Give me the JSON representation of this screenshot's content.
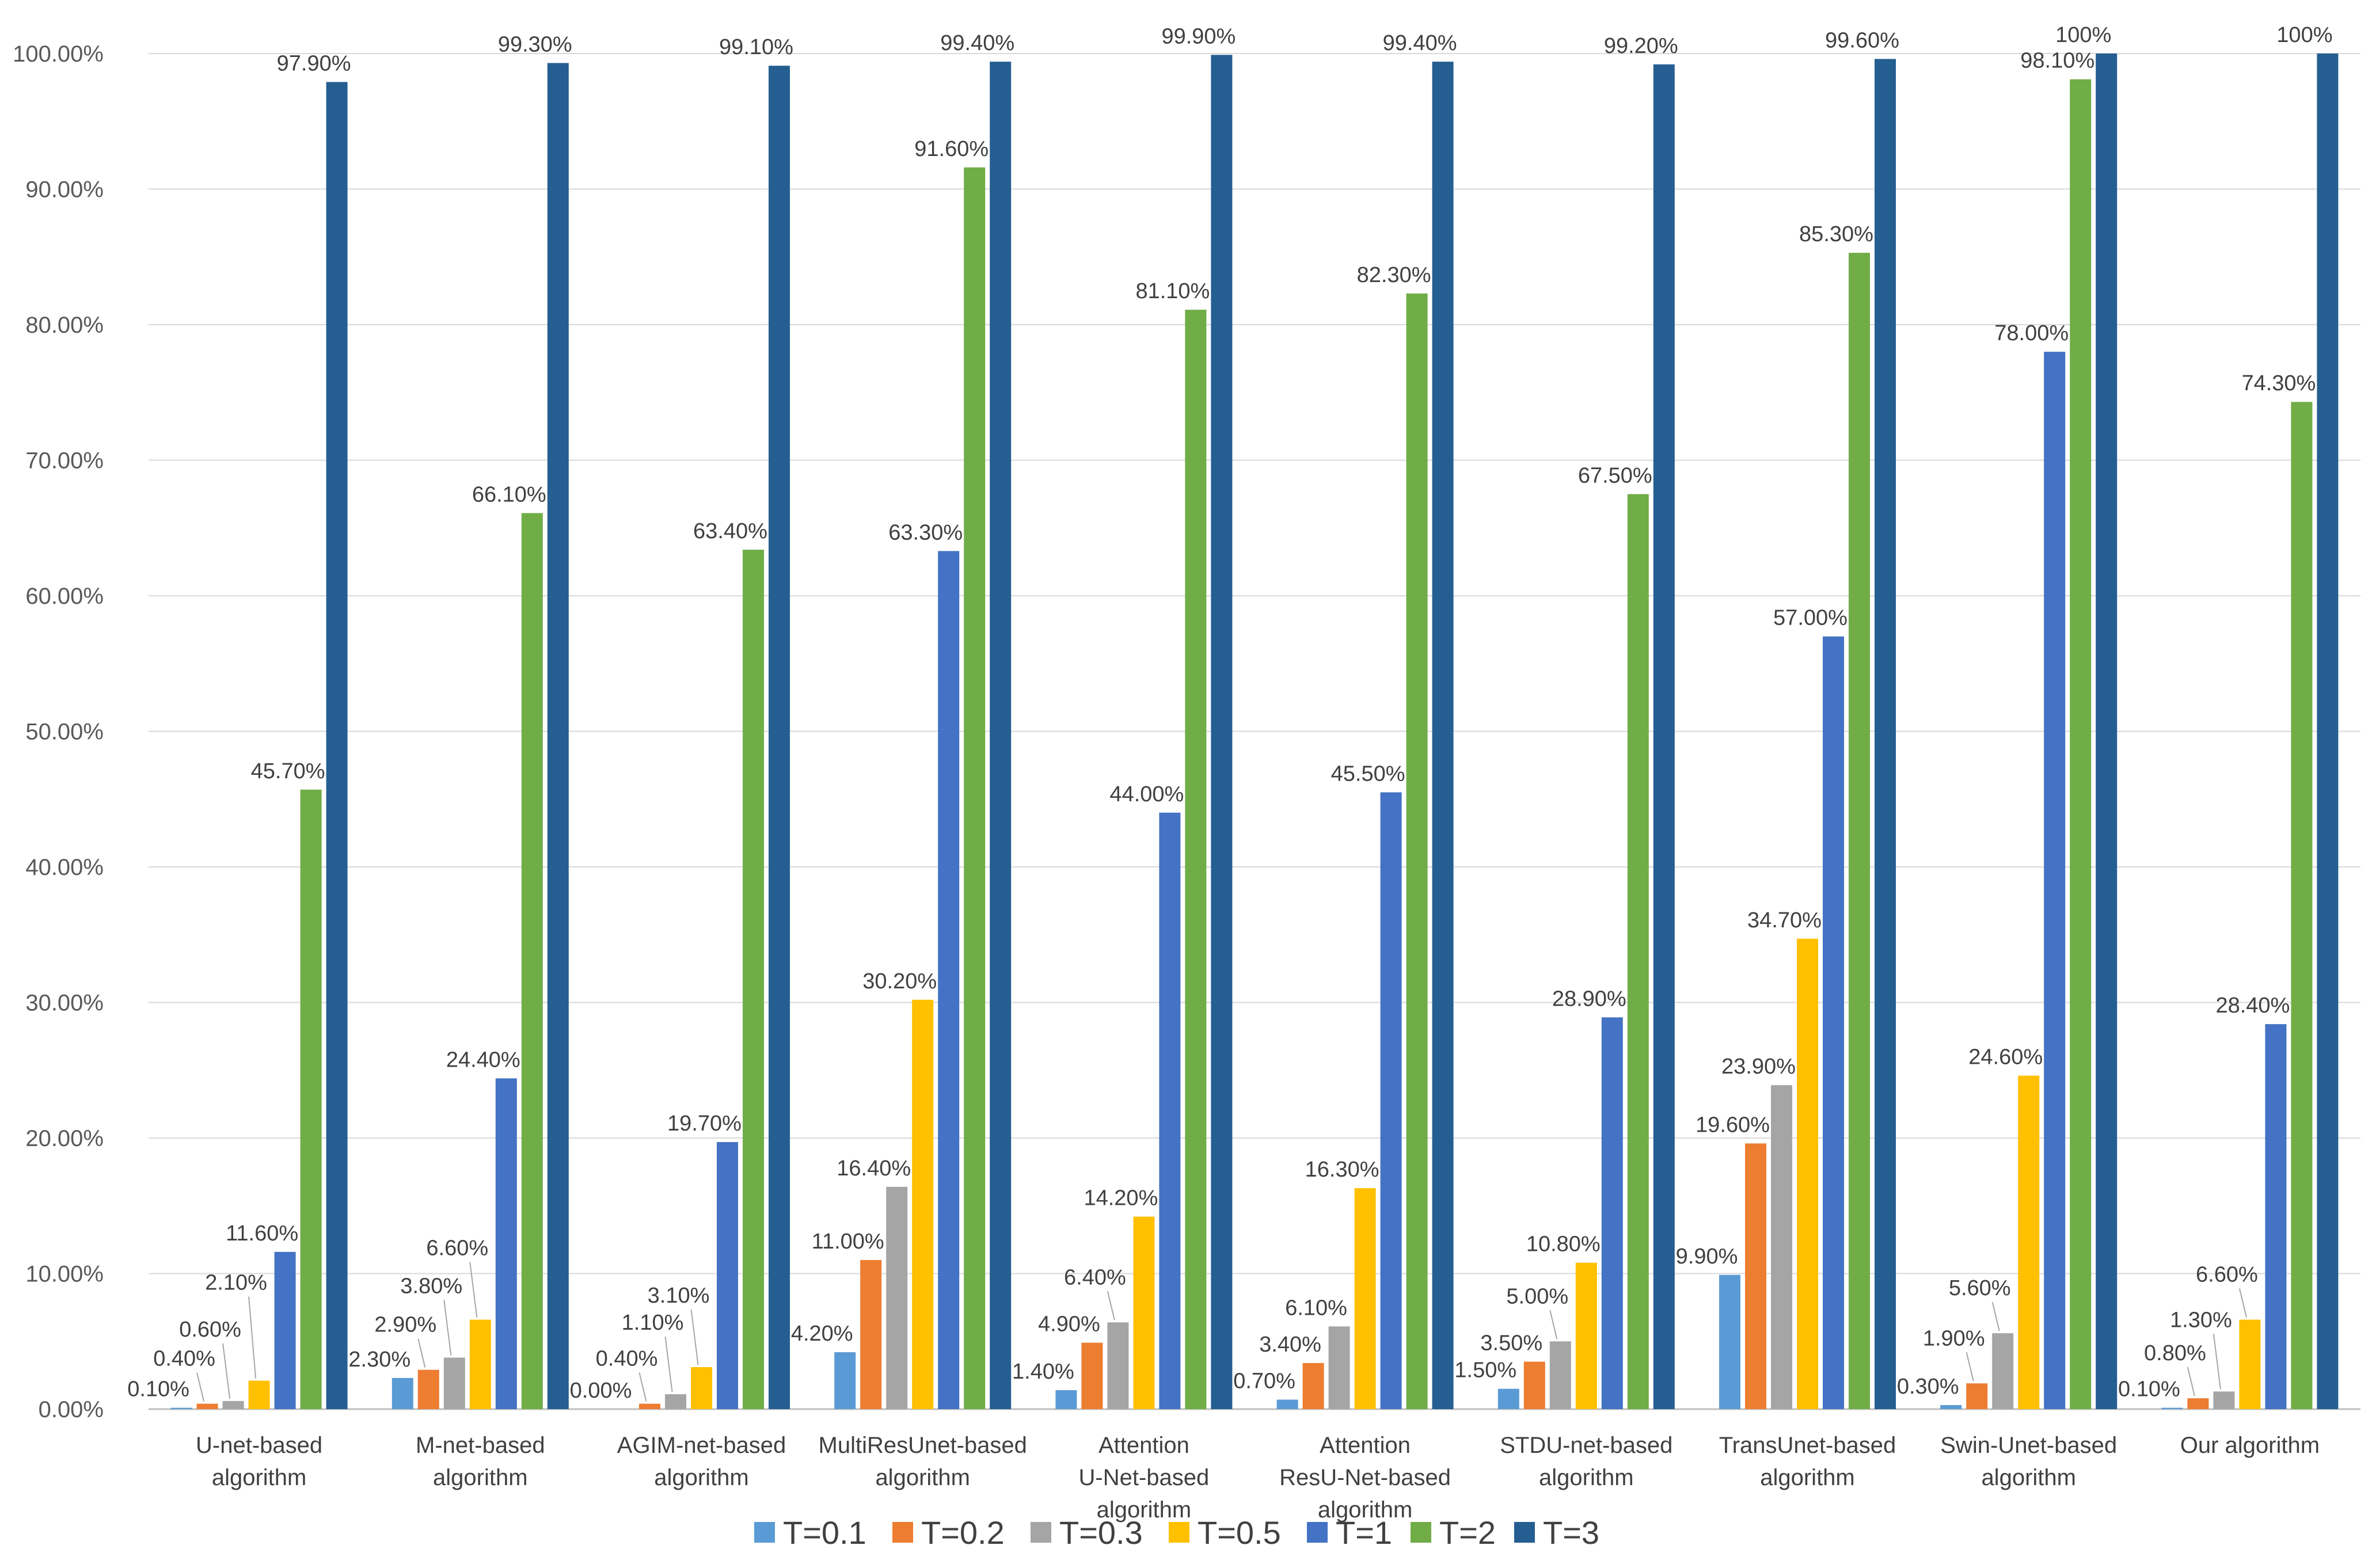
{
  "chart_data": {
    "type": "bar",
    "title": "",
    "xlabel": "",
    "ylabel": "",
    "ylim": [
      0,
      100
    ],
    "y_ticks": [
      "0.00%",
      "10.00%",
      "20.00%",
      "30.00%",
      "40.00%",
      "50.00%",
      "60.00%",
      "70.00%",
      "80.00%",
      "90.00%",
      "100.00%"
    ],
    "grid": true,
    "legend_position": "bottom",
    "categories": [
      [
        "U-net-based",
        "algorithm"
      ],
      [
        "M-net-based",
        "algorithm"
      ],
      [
        "AGIM-net-based",
        "algorithm"
      ],
      [
        "MultiResUnet-based",
        "algorithm"
      ],
      [
        "Attention",
        "U-Net-based",
        "algorithm"
      ],
      [
        "Attention",
        "ResU-Net-based",
        "algorithm"
      ],
      [
        "STDU-net-based",
        "algorithm"
      ],
      [
        "TransUnet-based",
        "algorithm"
      ],
      [
        "Swin-Unet-based",
        "algorithm"
      ],
      [
        "Our algorithm"
      ]
    ],
    "series": [
      {
        "name": "T=0.1",
        "color": "#5b9bd5",
        "values": [
          0.1,
          2.3,
          0.0,
          4.2,
          1.4,
          0.7,
          1.5,
          9.9,
          0.3,
          0.1
        ],
        "labels": [
          "0.10%",
          "2.30%",
          "0.00%",
          "4.20%",
          "1.40%",
          "0.70%",
          "1.50%",
          "9.90%",
          "0.30%",
          "0.10%"
        ]
      },
      {
        "name": "T=0.2",
        "color": "#ed7d31",
        "values": [
          0.4,
          2.9,
          0.4,
          11.0,
          4.9,
          3.4,
          3.5,
          19.6,
          1.9,
          0.8
        ],
        "labels": [
          "0.40%",
          "2.90%",
          "0.40%",
          "11.00%",
          "4.90%",
          "3.40%",
          "3.50%",
          "19.60%",
          "1.90%",
          "0.80%"
        ]
      },
      {
        "name": "T=0.3",
        "color": "#a5a5a5",
        "values": [
          0.6,
          3.8,
          1.1,
          16.4,
          6.4,
          6.1,
          5.0,
          23.9,
          5.6,
          1.3
        ],
        "labels": [
          "0.60%",
          "3.80%",
          "1.10%",
          "16.40%",
          "6.40%",
          "6.10%",
          "5.00%",
          "23.90%",
          "5.60%",
          "1.30%"
        ]
      },
      {
        "name": "T=0.5",
        "color": "#ffc000",
        "values": [
          2.1,
          6.6,
          3.1,
          30.2,
          14.2,
          16.3,
          10.8,
          34.7,
          24.6,
          6.6
        ],
        "labels": [
          "2.10%",
          "6.60%",
          "3.10%",
          "30.20%",
          "14.20%",
          "16.30%",
          "10.80%",
          "34.70%",
          "24.60%",
          "6.60%"
        ]
      },
      {
        "name": "T=1",
        "color": "#4472c4",
        "values": [
          11.6,
          24.4,
          19.7,
          63.3,
          44.0,
          45.5,
          28.9,
          57.0,
          78.0,
          28.4
        ],
        "labels": [
          "11.60%",
          "24.40%",
          "19.70%",
          "63.30%",
          "44.00%",
          "45.50%",
          "28.90%",
          "57.00%",
          "78.00%",
          "28.40%"
        ]
      },
      {
        "name": "T=2",
        "color": "#70ad47",
        "values": [
          45.7,
          66.1,
          63.4,
          91.6,
          81.1,
          82.3,
          67.5,
          85.3,
          98.1,
          74.3
        ],
        "labels": [
          "45.70%",
          "66.10%",
          "63.40%",
          "91.60%",
          "81.10%",
          "82.30%",
          "67.50%",
          "85.30%",
          "98.10%",
          "74.30%"
        ]
      },
      {
        "name": "T=3",
        "color": "#255e91",
        "values": [
          97.9,
          99.3,
          99.1,
          99.4,
          99.9,
          99.4,
          99.2,
          99.6,
          100,
          100
        ],
        "labels": [
          "97.90%",
          "99.30%",
          "99.10%",
          "99.40%",
          "99.90%",
          "99.40%",
          "99.20%",
          "99.60%",
          "100%",
          "100%"
        ]
      }
    ]
  }
}
